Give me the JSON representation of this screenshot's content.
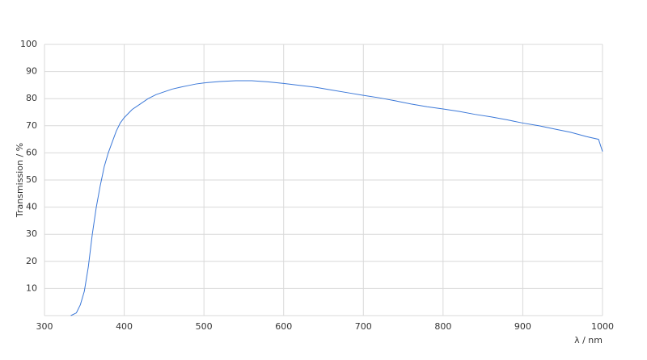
{
  "chart_data": {
    "type": "line",
    "x_label": "λ / nm",
    "y_label": "Transmission / %",
    "x": [
      333,
      340,
      345,
      350,
      355,
      360,
      365,
      370,
      375,
      380,
      385,
      390,
      395,
      400,
      410,
      420,
      430,
      440,
      450,
      460,
      470,
      480,
      490,
      500,
      520,
      540,
      560,
      580,
      600,
      620,
      640,
      660,
      680,
      700,
      720,
      740,
      760,
      780,
      800,
      820,
      840,
      860,
      880,
      900,
      920,
      940,
      960,
      980,
      995,
      1000
    ],
    "values": [
      0,
      1,
      4,
      9,
      18,
      30,
      40,
      48,
      55,
      60,
      64,
      68,
      71,
      73,
      76,
      78,
      80,
      81.5,
      82.5,
      83.5,
      84.2,
      84.8,
      85.4,
      85.8,
      86.3,
      86.6,
      86.6,
      86.2,
      85.6,
      84.9,
      84.2,
      83.2,
      82.2,
      81.2,
      80.3,
      79.2,
      78,
      77,
      76.2,
      75.3,
      74.2,
      73.3,
      72.2,
      71,
      70,
      68.8,
      67.6,
      66,
      65,
      60.5
    ],
    "color": "#3b78d8",
    "xlim": [
      300,
      1000
    ],
    "ylim": [
      0,
      100
    ],
    "xticks": [
      300,
      400,
      500,
      600,
      700,
      800,
      900,
      1000
    ],
    "yticks": [
      10,
      20,
      30,
      40,
      50,
      60,
      70,
      80,
      90,
      100
    ],
    "grid": true
  }
}
